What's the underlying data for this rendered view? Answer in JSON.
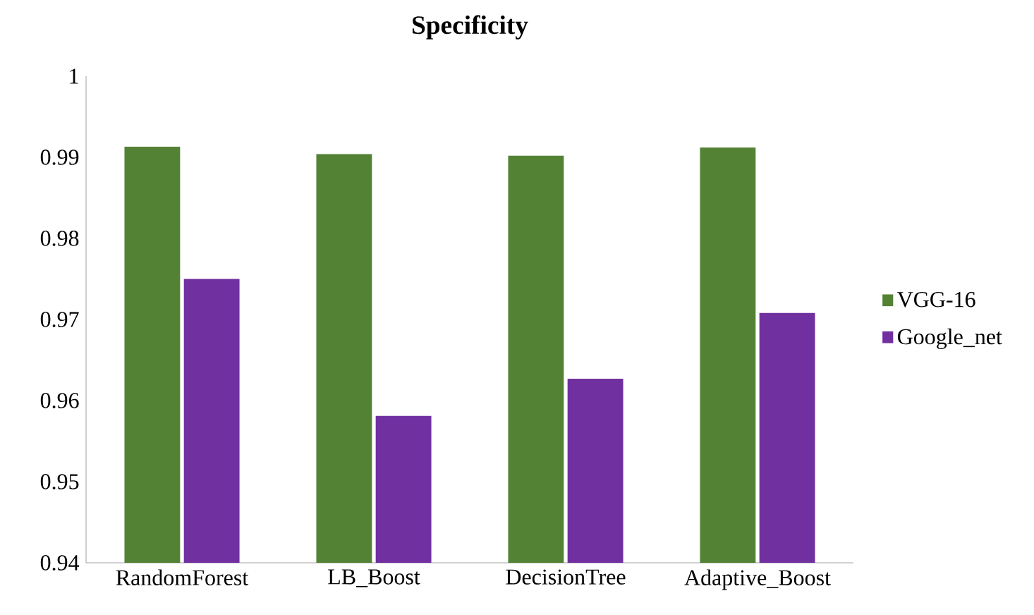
{
  "chart_data": {
    "type": "bar",
    "title": "Specificity",
    "categories": [
      "RandomForest",
      "LB_Boost",
      "DecisionTree",
      "Adaptive_Boost"
    ],
    "series": [
      {
        "name": "VGG-16",
        "color": "#548235",
        "values": [
          0.9913,
          0.9904,
          0.9902,
          0.9912
        ]
      },
      {
        "name": "Google_net",
        "color": "#7030a0",
        "values": [
          0.975,
          0.9581,
          0.9627,
          0.9708
        ]
      }
    ],
    "ylim": [
      0.94,
      1
    ],
    "yticks": [
      0.94,
      0.95,
      0.96,
      0.97,
      0.98,
      0.99,
      1
    ],
    "grid": false,
    "legend": "right"
  }
}
